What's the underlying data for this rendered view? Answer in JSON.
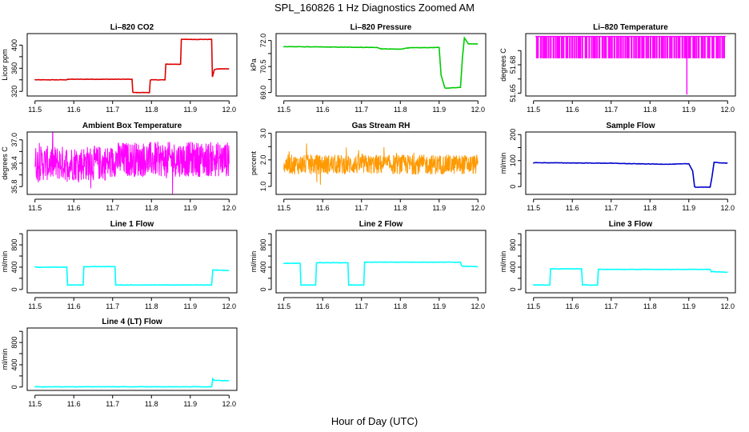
{
  "figure": {
    "title": "SPL_160826  1 Hz Diagnostics Zoomed AM",
    "xlabel": "Hour of Day (UTC)"
  },
  "chart_data": [
    {
      "id": "co2",
      "type": "line",
      "title": "Li–820 CO2",
      "ylabel": "Licor ppm",
      "color": "#dd0000",
      "xlim": [
        11.48,
        12.02
      ],
      "ylim": [
        312,
        420
      ],
      "yticks": [
        320,
        340,
        360,
        380,
        400
      ],
      "yticklabels": [
        "320",
        "",
        "360",
        "",
        "400"
      ],
      "xticks": [
        11.5,
        11.6,
        11.7,
        11.8,
        11.9,
        12.0
      ],
      "series": [
        {
          "x": [
            11.5,
            11.58,
            11.585,
            11.75,
            11.752,
            11.795,
            11.797,
            11.835,
            11.837,
            11.875,
            11.877,
            11.955,
            11.957,
            11.96,
            11.962,
            11.975,
            12.0
          ],
          "y": [
            340,
            340,
            341,
            341,
            318,
            318,
            340,
            340,
            367,
            367,
            410,
            410,
            345,
            352,
            358,
            359,
            359
          ]
        }
      ]
    },
    {
      "id": "pressure",
      "type": "line",
      "title": "Li–820 Pressure",
      "ylabel": "kPa",
      "color": "#00cc00",
      "xlim": [
        11.48,
        12.02
      ],
      "ylim": [
        68.8,
        72.4
      ],
      "yticks": [
        69.0,
        69.75,
        70.5,
        71.25,
        72.0
      ],
      "yticklabels": [
        "69.0",
        "",
        "70.5",
        "",
        "72.0"
      ],
      "xticks": [
        11.5,
        11.6,
        11.7,
        11.8,
        11.9,
        12.0
      ],
      "series": [
        {
          "x": [
            11.5,
            11.74,
            11.75,
            11.8,
            11.82,
            11.9,
            11.905,
            11.915,
            11.955,
            11.96,
            11.965,
            11.975,
            12.0
          ],
          "y": [
            71.65,
            71.6,
            71.52,
            71.5,
            71.58,
            71.6,
            70.0,
            69.25,
            69.3,
            71.0,
            72.15,
            71.82,
            71.8
          ]
        }
      ]
    },
    {
      "id": "temperature",
      "type": "line",
      "title": "Li–820 Temperature",
      "ylabel": "degrees C",
      "color": "#ff00ff",
      "xlim": [
        11.48,
        12.02
      ],
      "ylim": [
        51.648,
        51.692
      ],
      "yticks": [
        51.65,
        51.66,
        51.67,
        51.68
      ],
      "yticklabels": [
        "51.65",
        "",
        "51.68",
        ""
      ],
      "xticks": [
        11.5,
        11.6,
        11.7,
        11.8,
        11.9,
        12.0
      ],
      "noise": {
        "kind": "dropouts",
        "base": 51.69,
        "low": 51.675,
        "count": 90,
        "min_x": 11.505,
        "max_x": 11.995
      },
      "special": {
        "x": 11.895,
        "y": 51.649
      }
    },
    {
      "id": "ambient",
      "type": "line",
      "title": "Ambient Box Temperature",
      "ylabel": "degrees C",
      "color": "#ff00ff",
      "xlim": [
        11.48,
        12.02
      ],
      "ylim": [
        35.6,
        37.2
      ],
      "yticks": [
        35.8,
        36.1,
        36.4,
        36.7,
        37.0
      ],
      "yticklabels": [
        "35.8",
        "",
        "36.4",
        "",
        "37.0"
      ],
      "xticks": [
        11.5,
        11.6,
        11.7,
        11.8,
        11.9,
        12.0
      ],
      "noise": {
        "kind": "band",
        "segments": [
          [
            11.5,
            11.7,
            35.95,
            36.85
          ],
          [
            11.7,
            12.0,
            36.05,
            36.95
          ]
        ]
      }
    },
    {
      "id": "rh",
      "type": "line",
      "title": "Gas Stream RH",
      "ylabel": "percent",
      "color": "#ff9900",
      "xlim": [
        11.48,
        12.02
      ],
      "ylim": [
        0.7,
        3.05
      ],
      "yticks": [
        1.0,
        1.5,
        2.0,
        2.5,
        3.0
      ],
      "yticklabels": [
        "1.0",
        "",
        "2.0",
        "",
        "3.0"
      ],
      "xticks": [
        11.5,
        11.6,
        11.7,
        11.8,
        11.9,
        12.0
      ],
      "noise": {
        "kind": "band",
        "segments": [
          [
            11.5,
            12.0,
            1.45,
            2.2
          ]
        ]
      }
    },
    {
      "id": "sample_flow",
      "type": "line",
      "title": "Sample Flow",
      "ylabel": "ml/min",
      "color": "#0000cc",
      "xlim": [
        11.48,
        12.02
      ],
      "ylim": [
        -30,
        210
      ],
      "yticks": [
        0,
        50,
        100,
        150,
        200
      ],
      "yticklabels": [
        "0",
        "",
        "100",
        "",
        "200"
      ],
      "xticks": [
        11.5,
        11.6,
        11.7,
        11.8,
        11.9,
        12.0
      ],
      "series": [
        {
          "x": [
            11.5,
            11.7,
            11.75,
            11.85,
            11.9,
            11.91,
            11.915,
            11.955,
            11.96,
            11.965,
            12.0
          ],
          "y": [
            92,
            90,
            88,
            86,
            88,
            60,
            -2,
            -2,
            40,
            93,
            90
          ]
        }
      ]
    },
    {
      "id": "line1",
      "type": "line",
      "title": "Line 1 Flow",
      "ylabel": "ml/min",
      "color": "#00ffff",
      "xlim": [
        11.48,
        12.02
      ],
      "ylim": [
        -60,
        1060
      ],
      "yticks": [
        0,
        200,
        400,
        600,
        800,
        1000
      ],
      "yticklabels": [
        "0",
        "",
        "400",
        "",
        "800",
        ""
      ],
      "xticks": [
        11.5,
        11.6,
        11.7,
        11.8,
        11.9,
        12.0
      ],
      "series": [
        {
          "x": [
            11.5,
            11.582,
            11.584,
            11.624,
            11.626,
            11.706,
            11.708,
            11.955,
            11.958,
            12.0
          ],
          "y": [
            400,
            400,
            80,
            80,
            410,
            410,
            80,
            80,
            350,
            340
          ]
        }
      ]
    },
    {
      "id": "line2",
      "type": "line",
      "title": "Line 2 Flow",
      "ylabel": "ml/min",
      "color": "#00ffff",
      "xlim": [
        11.48,
        12.02
      ],
      "ylim": [
        -60,
        1060
      ],
      "yticks": [
        0,
        200,
        400,
        600,
        800,
        1000
      ],
      "yticklabels": [
        "0",
        "",
        "400",
        "",
        "800",
        ""
      ],
      "xticks": [
        11.5,
        11.6,
        11.7,
        11.8,
        11.9,
        12.0
      ],
      "series": [
        {
          "x": [
            11.5,
            11.542,
            11.544,
            11.582,
            11.584,
            11.665,
            11.667,
            11.706,
            11.708,
            11.955,
            11.958,
            12.0
          ],
          "y": [
            470,
            470,
            80,
            80,
            480,
            480,
            80,
            80,
            490,
            490,
            420,
            410
          ]
        }
      ]
    },
    {
      "id": "line3",
      "type": "line",
      "title": "Line 3 Flow",
      "ylabel": "ml/min",
      "color": "#00ffff",
      "xlim": [
        11.48,
        12.02
      ],
      "ylim": [
        -60,
        1060
      ],
      "yticks": [
        0,
        200,
        400,
        600,
        800,
        1000
      ],
      "yticklabels": [
        "0",
        "",
        "400",
        "",
        "800",
        ""
      ],
      "xticks": [
        11.5,
        11.6,
        11.7,
        11.8,
        11.9,
        12.0
      ],
      "series": [
        {
          "x": [
            11.5,
            11.542,
            11.544,
            11.624,
            11.626,
            11.665,
            11.667,
            11.955,
            11.958,
            12.0
          ],
          "y": [
            80,
            80,
            370,
            370,
            80,
            80,
            360,
            360,
            320,
            310
          ]
        }
      ]
    },
    {
      "id": "line4",
      "type": "line",
      "title": "Line 4 (LT) Flow",
      "ylabel": "ml/min",
      "color": "#00ffff",
      "xlim": [
        11.48,
        12.02
      ],
      "ylim": [
        -60,
        1060
      ],
      "yticks": [
        0,
        200,
        400,
        600,
        800,
        1000
      ],
      "yticklabels": [
        "0",
        "",
        "400",
        "",
        "800",
        ""
      ],
      "xticks": [
        11.5,
        11.6,
        11.7,
        11.8,
        11.9,
        12.0
      ],
      "series": [
        {
          "x": [
            11.5,
            11.955,
            11.958,
            11.962,
            11.97,
            12.0
          ],
          "y": [
            5,
            5,
            150,
            120,
            118,
            115
          ]
        }
      ]
    }
  ]
}
